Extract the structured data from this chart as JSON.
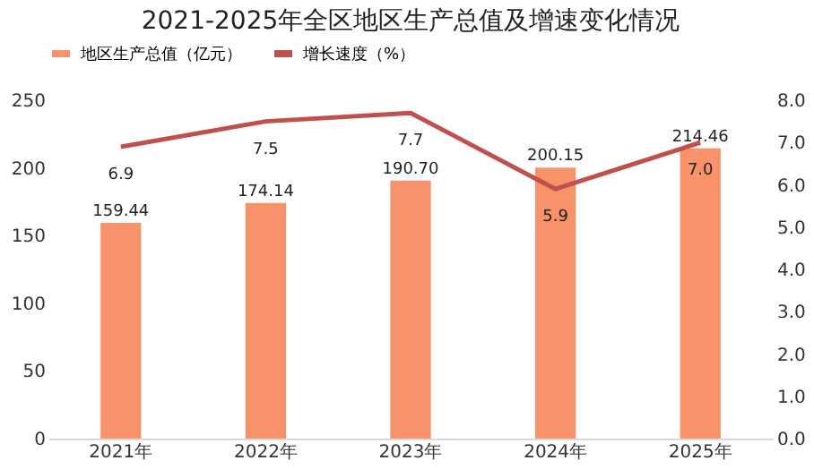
{
  "chart_data": {
    "type": "bar",
    "title": "2021-2025年全区地区生产总值及增速变化情况",
    "categories": [
      "2021年",
      "2022年",
      "2023年",
      "2024年",
      "2025年"
    ],
    "series": [
      {
        "name": "地区生产总值（亿元）",
        "color": "#f7926a",
        "values": [
          159.44,
          174.14,
          190.7,
          200.15,
          214.46
        ],
        "value_labels": [
          "159.44",
          "174.14",
          "190.70",
          "200.15",
          "214.46"
        ]
      },
      {
        "name": "增长速度（%）",
        "type": "line",
        "axis": "y2",
        "color": "#c0504d",
        "values": [
          6.9,
          7.5,
          7.7,
          5.9,
          7.0
        ],
        "value_labels": [
          "6.9",
          "7.5",
          "7.7",
          "5.9",
          "7.0"
        ]
      }
    ],
    "ylim": [
      0,
      250
    ],
    "yticks": [
      0,
      50,
      100,
      150,
      200,
      250
    ],
    "y2lim": [
      0,
      8
    ],
    "y2ticks": [
      {
        "value": 0,
        "label": "0.0"
      },
      {
        "value": 1,
        "label": "1.0"
      },
      {
        "value": 2,
        "label": "2.0"
      },
      {
        "value": 3,
        "label": "3.0"
      },
      {
        "value": 4,
        "label": "4.0"
      },
      {
        "value": 5,
        "label": "5.0"
      },
      {
        "value": 6,
        "label": "6.0"
      },
      {
        "value": 7,
        "label": "7.0"
      },
      {
        "value": 8,
        "label": "8.0"
      }
    ],
    "grid": false,
    "legend": "top",
    "marker": "none",
    "line_style": "solid"
  }
}
